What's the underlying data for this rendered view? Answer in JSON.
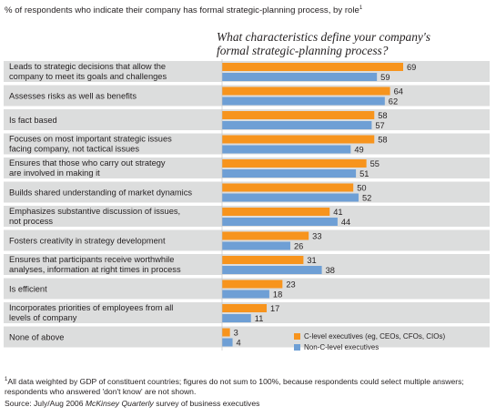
{
  "header": {
    "note_text": "% of respondents who indicate their company has formal strategic-planning process, by role",
    "note_marker": "1"
  },
  "chart_data": {
    "type": "bar",
    "orientation": "horizontal",
    "title_line1": "What characteristics define your company's",
    "title_line2": "formal strategic-planning process?",
    "categories": [
      [
        "Leads to strategic decisions that allow the",
        "company to meet its goals and challenges"
      ],
      [
        "Assesses risks as well as benefits"
      ],
      [
        "Is fact based"
      ],
      [
        "Focuses on most important strategic issues",
        "facing company, not tactical issues"
      ],
      [
        "Ensures that those who carry out strategy",
        "are involved in making it"
      ],
      [
        "Builds shared understanding of market dynamics"
      ],
      [
        "Emphasizes substantive discussion of issues,",
        "not process"
      ],
      [
        "Fosters creativity in strategy development"
      ],
      [
        "Ensures that participants receive worthwhile",
        "analyses, information at right times in process"
      ],
      [
        "Is efficient"
      ],
      [
        "Incorporates priorities of employees from all",
        "levels of company"
      ],
      [
        "None of above"
      ]
    ],
    "series": [
      {
        "name": "C-level executives (eg, CEOs, CFOs, CIOs)",
        "color": "#f7941d",
        "values": [
          69,
          64,
          58,
          58,
          55,
          50,
          41,
          33,
          31,
          23,
          17,
          3
        ]
      },
      {
        "name": "Non-C-level executives",
        "color": "#6e9fd5",
        "values": [
          59,
          62,
          57,
          49,
          51,
          52,
          44,
          26,
          38,
          18,
          11,
          4
        ]
      }
    ],
    "xlim": [
      0,
      100
    ],
    "legend_position": "bottom-right",
    "row_band_color": "#dcdddd"
  },
  "footnote": {
    "marker": "1",
    "text": "All data weighted by GDP of constituent countries; figures do not sum to 100%, because respondents could select multiple answers; respondents who answered 'don't know' are not shown."
  },
  "source": {
    "prefix": "Source: July/Aug 2006 ",
    "publication": "McKinsey Quarterly",
    "suffix": " survey of business executives"
  }
}
